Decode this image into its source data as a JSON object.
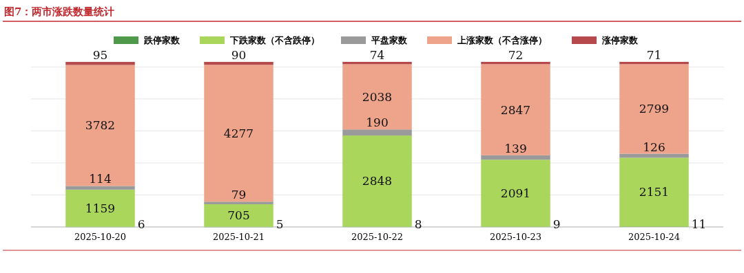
{
  "chart_data": {
    "type": "bar",
    "stacked": true,
    "title": "图7：两市涨跌数量统计",
    "categories": [
      "2025-10-20",
      "2025-10-21",
      "2025-10-22",
      "2025-10-23",
      "2025-10-24"
    ],
    "series": [
      {
        "name": "跌停家数",
        "color": "#4f9a4a",
        "values": [
          6,
          5,
          8,
          9,
          11
        ]
      },
      {
        "name": "下跌家数（不含跌停）",
        "color": "#a9d65b",
        "values": [
          1159,
          705,
          2848,
          2091,
          2151
        ]
      },
      {
        "name": "平盘家数",
        "color": "#9a9a9a",
        "values": [
          114,
          79,
          190,
          139,
          126
        ]
      },
      {
        "name": "上涨家数（不含涨停）",
        "color": "#eea48a",
        "values": [
          3782,
          4277,
          2038,
          2847,
          2799
        ]
      },
      {
        "name": "涨停家数",
        "color": "#b5494c",
        "values": [
          95,
          90,
          74,
          72,
          71
        ]
      }
    ],
    "ylim": [
      0,
      5200
    ],
    "yticks": [
      {
        "value": 0,
        "label": null
      },
      {
        "value": 1000,
        "label": null
      },
      {
        "value": 2000,
        "label": null
      },
      {
        "value": 3000,
        "label": null
      },
      {
        "value": 4000,
        "label": null
      },
      {
        "value": 5000,
        "label": null
      }
    ],
    "tick_labels": "x",
    "grid": "y",
    "legend": "top",
    "data_labels": true
  }
}
